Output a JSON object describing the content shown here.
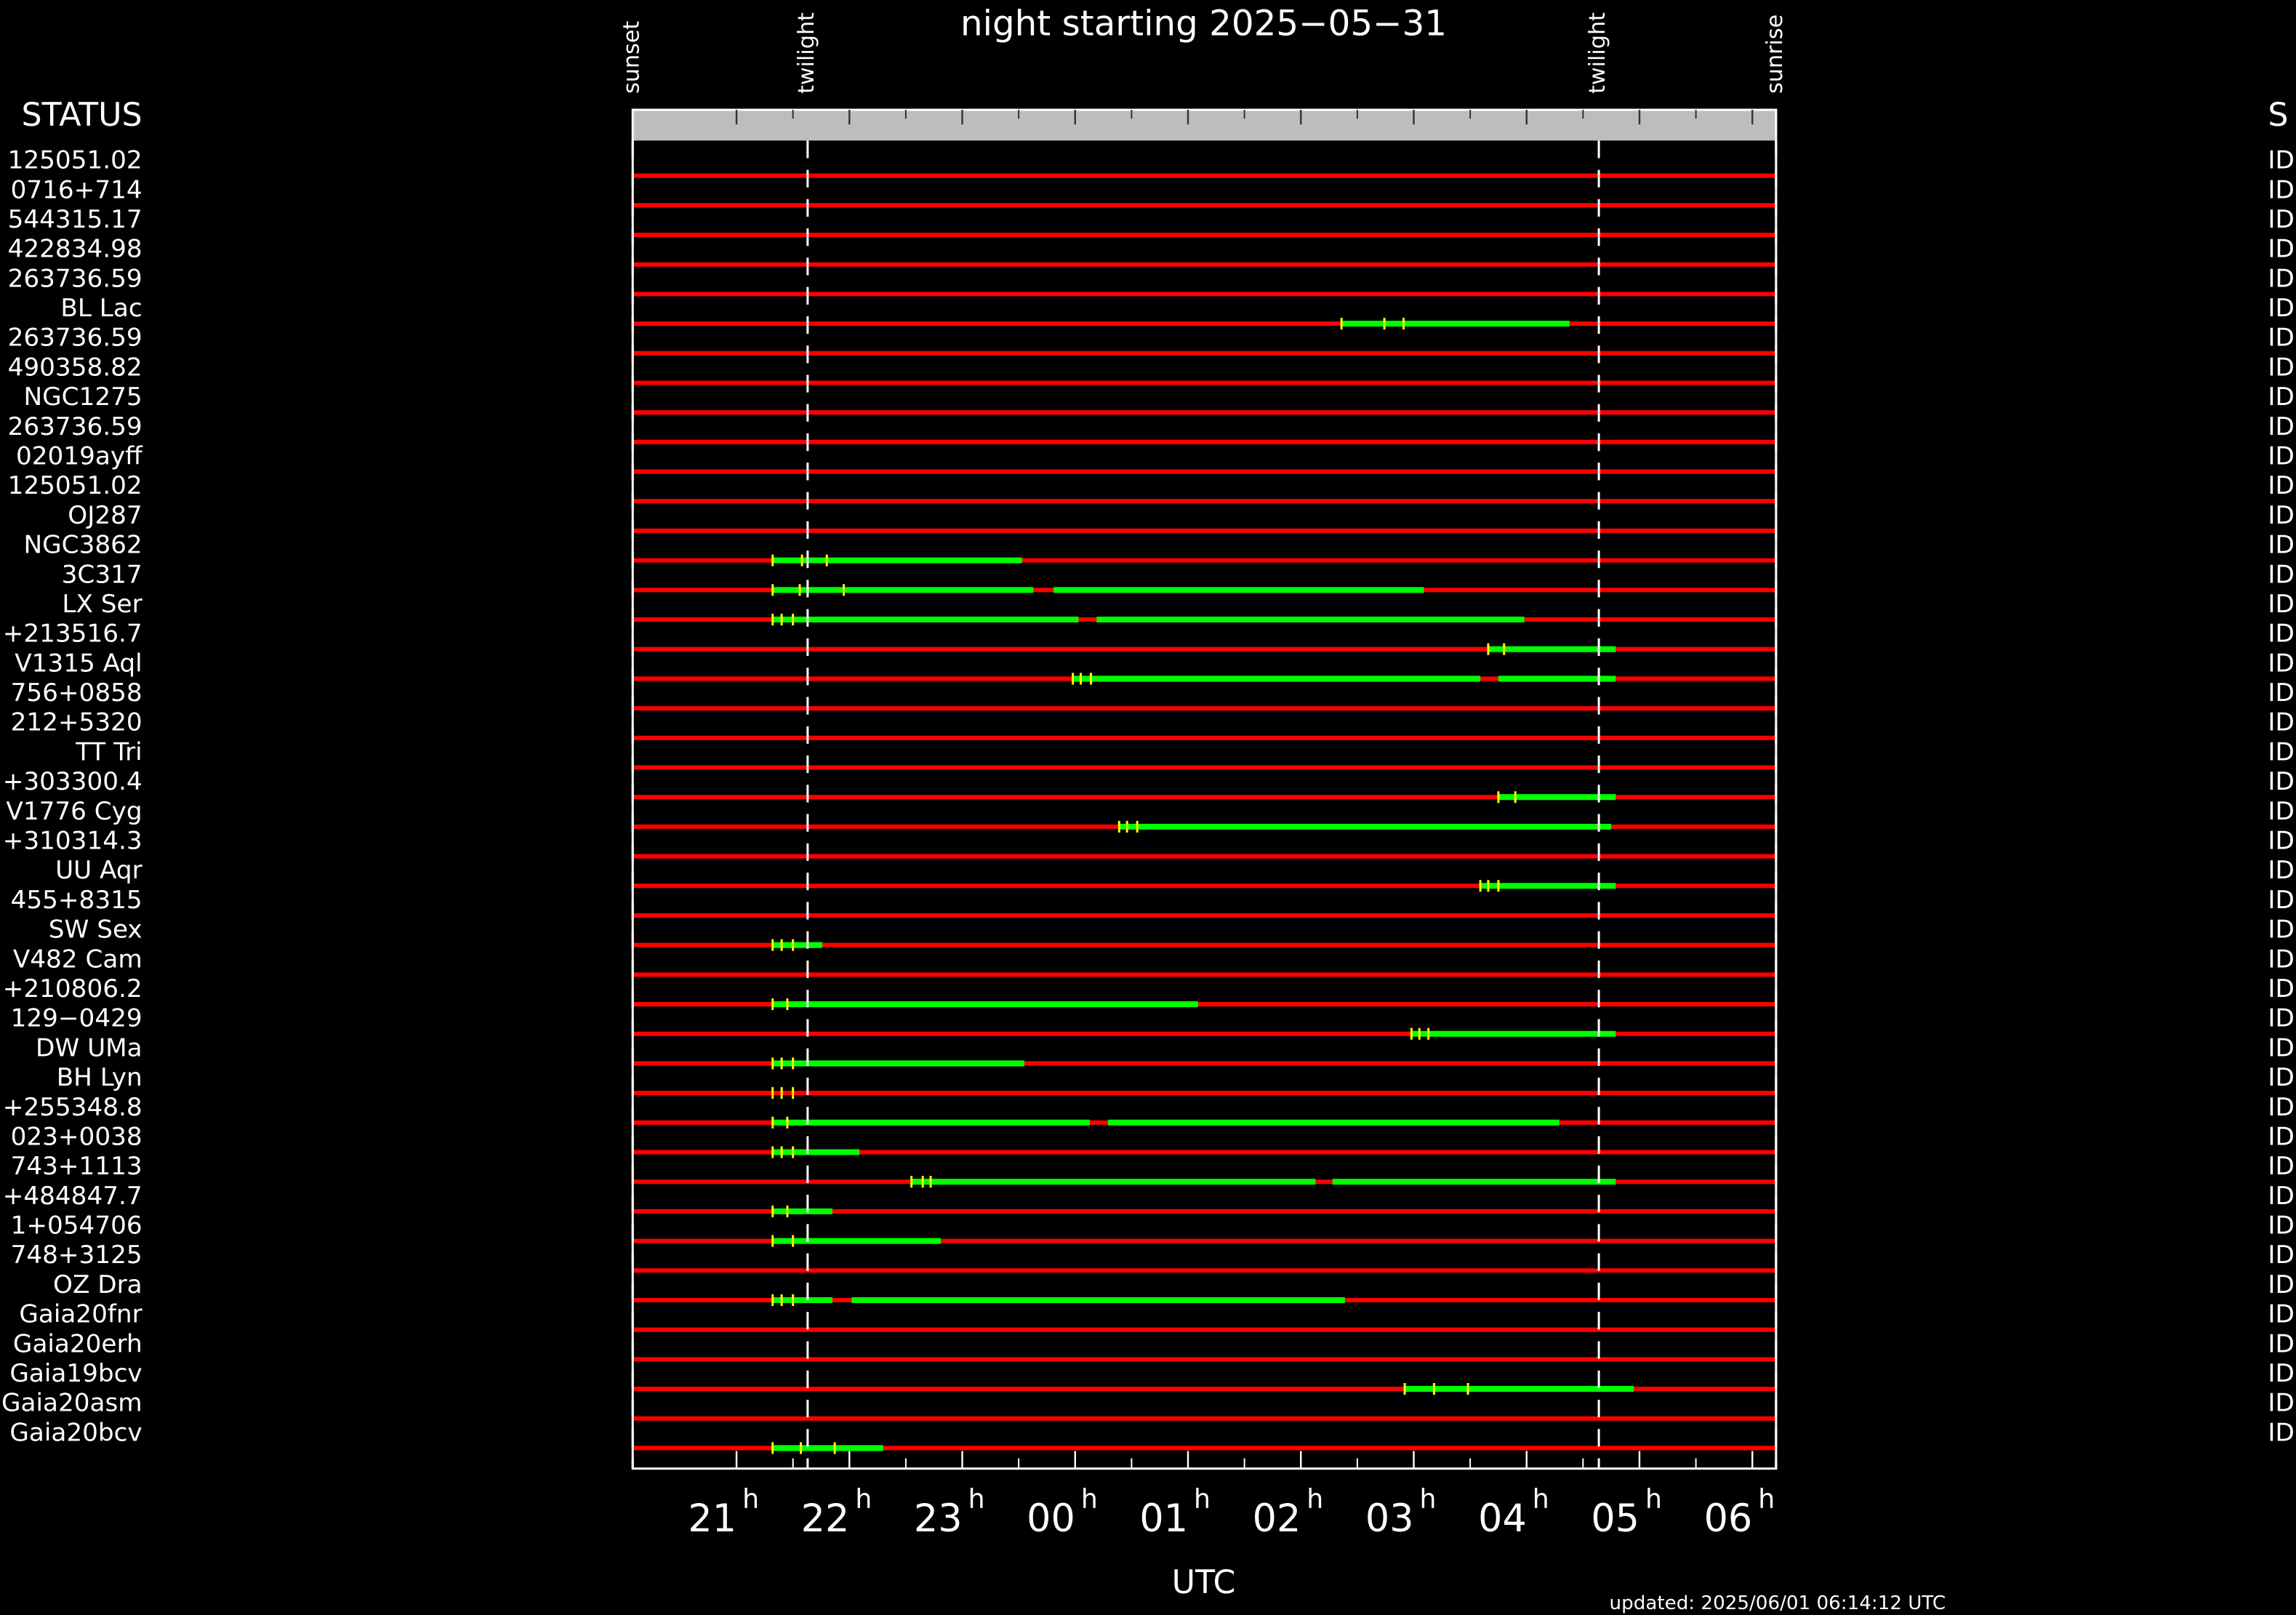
{
  "chart_data": {
    "type": "timeline",
    "title": "night starting 2025−05−31",
    "x_label": "UTC",
    "footer": "updated: 2025/06/01 06:14:12 UTC",
    "left_header": "STATUS",
    "right_header": "S",
    "hour_unit": "h",
    "xlim": [
      20.08,
      30.21
    ],
    "xticks": [
      {
        "value": 21,
        "label": "21"
      },
      {
        "value": 22,
        "label": "22"
      },
      {
        "value": 23,
        "label": "23"
      },
      {
        "value": 24,
        "label": "00"
      },
      {
        "value": 25,
        "label": "01"
      },
      {
        "value": 26,
        "label": "02"
      },
      {
        "value": 27,
        "label": "03"
      },
      {
        "value": 28,
        "label": "04"
      },
      {
        "value": 29,
        "label": "05"
      },
      {
        "value": 30,
        "label": "06"
      }
    ],
    "events": [
      {
        "name": "sunset",
        "time": 20.08
      },
      {
        "name": "twilight",
        "time": 21.63
      },
      {
        "name": "twilight",
        "time": 28.64
      },
      {
        "name": "sunrise",
        "time": 30.21
      }
    ],
    "colors": {
      "unobservable": "#ff0000",
      "observable": "#00ff00",
      "marker": "#ffff00"
    },
    "rows": [
      {
        "name": "125051.02",
        "status": "ID",
        "segments": [],
        "markers": []
      },
      {
        "name": "0716+714",
        "status": "ID",
        "segments": [],
        "markers": []
      },
      {
        "name": "544315.17",
        "status": "ID",
        "segments": [],
        "markers": []
      },
      {
        "name": "422834.98",
        "status": "ID",
        "segments": [],
        "markers": []
      },
      {
        "name": "263736.59",
        "status": "ID",
        "segments": [],
        "markers": []
      },
      {
        "name": "BL Lac",
        "status": "ID",
        "segments": [
          [
            26.36,
            28.38
          ]
        ],
        "markers": [
          26.36,
          26.74,
          26.91
        ]
      },
      {
        "name": "263736.59",
        "status": "ID",
        "segments": [],
        "markers": []
      },
      {
        "name": "490358.82",
        "status": "ID",
        "segments": [],
        "markers": []
      },
      {
        "name": "NGC1275",
        "status": "ID",
        "segments": [],
        "markers": []
      },
      {
        "name": "263736.59",
        "status": "ID",
        "segments": [],
        "markers": []
      },
      {
        "name": "02019ayff",
        "status": "ID",
        "segments": [],
        "markers": []
      },
      {
        "name": "125051.02",
        "status": "ID",
        "segments": [],
        "markers": []
      },
      {
        "name": "OJ287",
        "status": "ID",
        "segments": [],
        "markers": []
      },
      {
        "name": "NGC3862",
        "status": "ID",
        "segments": [
          [
            21.32,
            23.53
          ]
        ],
        "markers": [
          21.32,
          21.58,
          21.8
        ]
      },
      {
        "name": "3C317",
        "status": "ID",
        "segments": [
          [
            21.32,
            23.63
          ],
          [
            23.81,
            27.09
          ]
        ],
        "markers": [
          21.32,
          21.56,
          21.95
        ]
      },
      {
        "name": "LX Ser",
        "status": "ID",
        "segments": [
          [
            21.32,
            24.03
          ],
          [
            24.19,
            27.98
          ]
        ],
        "markers": [
          21.32,
          21.4,
          21.5
        ]
      },
      {
        "name": "+213516.7",
        "status": "ID",
        "segments": [
          [
            27.66,
            28.79
          ]
        ],
        "markers": [
          27.66,
          27.8
        ]
      },
      {
        "name": "V1315 Aql",
        "status": "ID",
        "segments": [
          [
            23.98,
            27.59
          ],
          [
            27.75,
            28.79
          ]
        ],
        "markers": [
          23.98,
          24.05,
          24.14
        ]
      },
      {
        "name": "756+0858",
        "status": "ID",
        "segments": [],
        "markers": []
      },
      {
        "name": "212+5320",
        "status": "ID",
        "segments": [],
        "markers": []
      },
      {
        "name": "TT Tri",
        "status": "ID",
        "segments": [],
        "markers": []
      },
      {
        "name": "+303300.4",
        "status": "ID",
        "segments": [
          [
            27.75,
            28.79
          ]
        ],
        "markers": [
          27.75,
          27.9
        ]
      },
      {
        "name": "V1776 Cyg",
        "status": "ID",
        "segments": [
          [
            24.39,
            28.75
          ]
        ],
        "markers": [
          24.39,
          24.46,
          24.55
        ]
      },
      {
        "name": "+310314.3",
        "status": "ID",
        "segments": [],
        "markers": []
      },
      {
        "name": "UU Aqr",
        "status": "ID",
        "segments": [
          [
            27.59,
            28.79
          ]
        ],
        "markers": [
          27.59,
          27.66,
          27.75
        ]
      },
      {
        "name": "455+8315",
        "status": "ID",
        "segments": [],
        "markers": []
      },
      {
        "name": "SW Sex",
        "status": "ID",
        "segments": [
          [
            21.32,
            21.76
          ]
        ],
        "markers": [
          21.32,
          21.4,
          21.5
        ]
      },
      {
        "name": "V482 Cam",
        "status": "ID",
        "segments": [],
        "markers": []
      },
      {
        "name": "+210806.2",
        "status": "ID",
        "segments": [
          [
            21.32,
            25.09
          ]
        ],
        "markers": [
          21.32,
          21.45
        ]
      },
      {
        "name": "129−0429",
        "status": "ID",
        "segments": [
          [
            26.98,
            28.79
          ]
        ],
        "markers": [
          26.98,
          27.05,
          27.13
        ]
      },
      {
        "name": "DW UMa",
        "status": "ID",
        "segments": [
          [
            21.32,
            23.55
          ]
        ],
        "markers": [
          21.32,
          21.4,
          21.5
        ]
      },
      {
        "name": "BH Lyn",
        "status": "ID",
        "segments": [],
        "markers": [
          21.32,
          21.4,
          21.5
        ]
      },
      {
        "name": "+255348.8",
        "status": "ID",
        "segments": [
          [
            21.32,
            24.13
          ],
          [
            24.29,
            28.29
          ]
        ],
        "markers": [
          21.32,
          21.45
        ]
      },
      {
        "name": "023+0038",
        "status": "ID",
        "segments": [
          [
            21.32,
            22.09
          ]
        ],
        "markers": [
          21.32,
          21.4,
          21.5
        ]
      },
      {
        "name": "743+1113",
        "status": "ID",
        "segments": [
          [
            22.55,
            26.13
          ],
          [
            26.28,
            28.79
          ]
        ],
        "markers": [
          22.55,
          22.65,
          22.72
        ]
      },
      {
        "name": "+484847.7",
        "status": "ID",
        "segments": [
          [
            21.32,
            21.85
          ]
        ],
        "markers": [
          21.32,
          21.45
        ]
      },
      {
        "name": "1+054706",
        "status": "ID",
        "segments": [
          [
            21.32,
            22.81
          ]
        ],
        "markers": [
          21.32,
          21.5
        ]
      },
      {
        "name": "748+3125",
        "status": "ID",
        "segments": [],
        "markers": []
      },
      {
        "name": "OZ Dra",
        "status": "ID",
        "segments": [
          [
            21.32,
            21.85
          ],
          [
            22.02,
            26.39
          ]
        ],
        "markers": [
          21.32,
          21.4,
          21.5
        ]
      },
      {
        "name": "Gaia20fnr",
        "status": "ID",
        "segments": [],
        "markers": []
      },
      {
        "name": "Gaia20erh",
        "status": "ID",
        "segments": [],
        "markers": []
      },
      {
        "name": "Gaia19bcv",
        "status": "ID",
        "segments": [
          [
            26.92,
            28.95
          ]
        ],
        "markers": [
          26.92,
          27.18,
          27.48
        ]
      },
      {
        "name": "Gaia20asm",
        "status": "ID",
        "segments": [],
        "markers": []
      },
      {
        "name": "Gaia20bcv",
        "status": "ID",
        "segments": [
          [
            21.32,
            22.3
          ]
        ],
        "markers": [
          21.32,
          21.57,
          21.87
        ]
      }
    ]
  }
}
